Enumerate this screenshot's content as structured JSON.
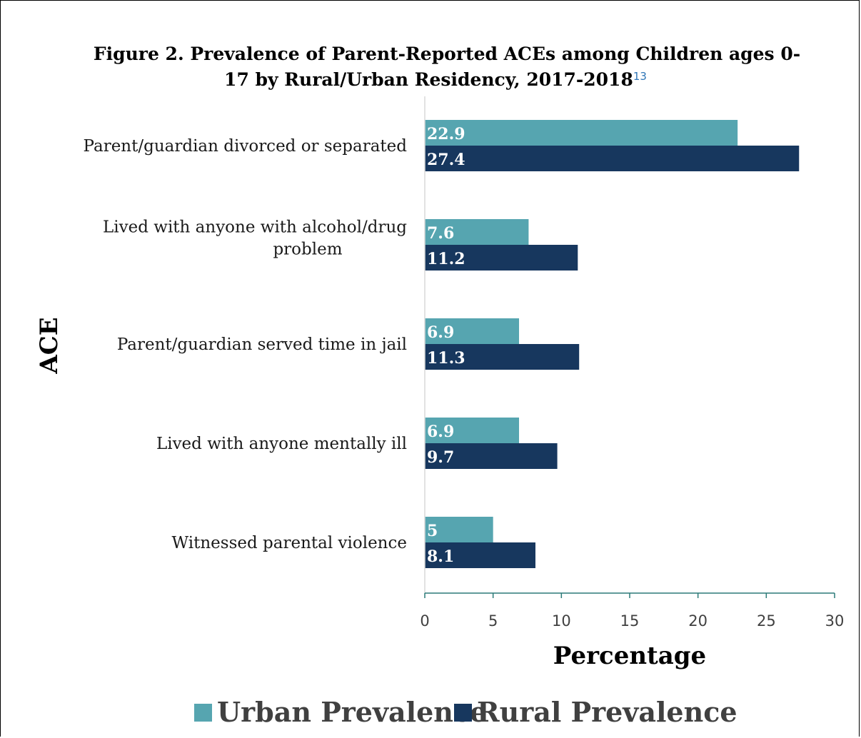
{
  "chart_data": {
    "type": "bar",
    "orientation": "horizontal",
    "title_line1": "Figure 2. Prevalence of Parent-Reported ACEs among Children ages 0-",
    "title_line2": "17 by Rural/Urban Residency, 2017-2018",
    "title_superscript": "13",
    "xlabel": "Percentage",
    "ylabel": "ACE",
    "xlim": [
      0,
      30
    ],
    "xticks": [
      "0",
      "5",
      "10",
      "15",
      "20",
      "25",
      "30"
    ],
    "grid": false,
    "legend_position": "bottom",
    "categories": [
      [
        "Parent/guardian divorced or separated"
      ],
      [
        "Lived with anyone with alcohol/drug",
        "problem"
      ],
      [
        "Parent/guardian served time in jail"
      ],
      [
        "Lived with anyone mentally ill"
      ],
      [
        "Witnessed parental violence"
      ]
    ],
    "series": [
      {
        "name": "Urban Prevalence",
        "color": "#56a5b0",
        "values": [
          22.9,
          7.6,
          6.9,
          6.9,
          5
        ],
        "labels": [
          "22.9",
          "7.6",
          "6.9",
          "6.9",
          "5"
        ]
      },
      {
        "name": "Rural Prevalence",
        "color": "#17375e",
        "values": [
          27.4,
          11.2,
          11.3,
          9.7,
          8.1
        ],
        "labels": [
          "27.4",
          "11.2",
          "11.3",
          "9.7",
          "8.1"
        ]
      }
    ],
    "axis_color": "#2b7a78"
  }
}
